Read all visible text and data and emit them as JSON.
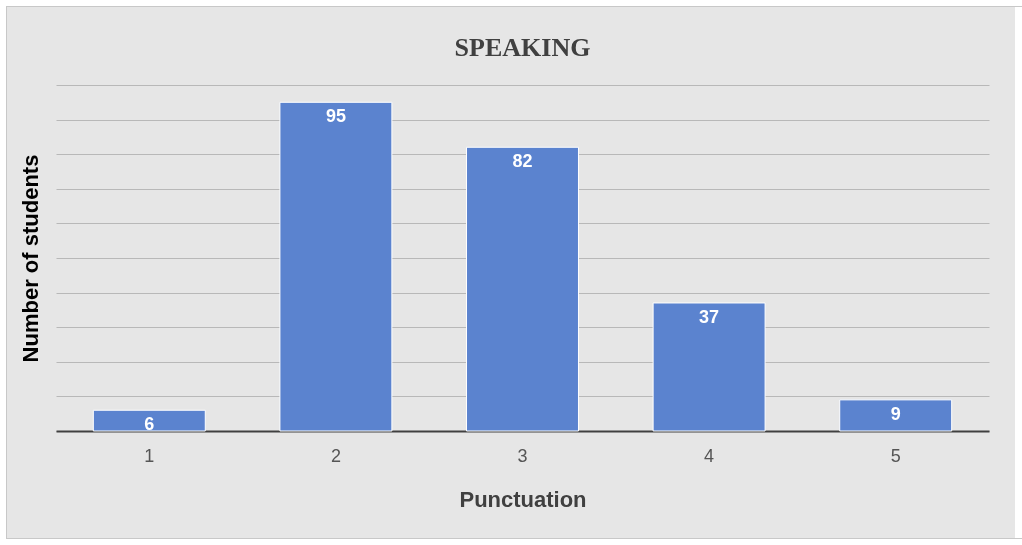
{
  "chart_data": {
    "type": "bar",
    "title": "SPEAKING",
    "xlabel": "Punctuation",
    "ylabel": "Number of students",
    "categories": [
      "1",
      "2",
      "3",
      "4",
      "5"
    ],
    "values": [
      6,
      95,
      82,
      37,
      9
    ],
    "color": "#5b83cf",
    "ylim": [
      0,
      100
    ],
    "yticks": [
      {
        "value": 0,
        "label": null
      },
      {
        "value": 10,
        "label": null
      },
      {
        "value": 20,
        "label": null
      },
      {
        "value": 30,
        "label": null
      },
      {
        "value": 40,
        "label": null
      },
      {
        "value": 50,
        "label": null
      },
      {
        "value": 60,
        "label": null
      },
      {
        "value": 70,
        "label": null
      },
      {
        "value": 80,
        "label": null
      },
      {
        "value": 90,
        "label": null
      },
      {
        "value": 100,
        "label": null
      }
    ],
    "grid": "y",
    "tick_labels": "x",
    "data_labels": true
  }
}
